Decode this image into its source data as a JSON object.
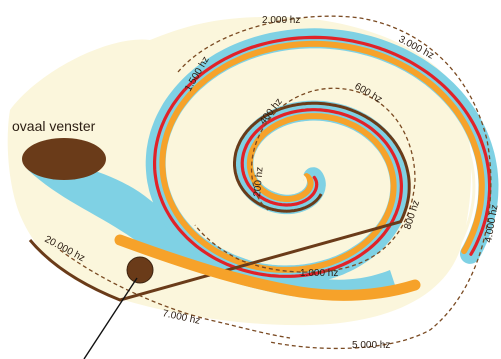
{
  "diagram": {
    "label_window": "ovaal venster",
    "frequencies": [
      "2.000 hz",
      "3.000 hz",
      "1.500 hz",
      "600 hz",
      "400 hz",
      "200 hz",
      "800 hz",
      "4.000 hz",
      "1.000 hz",
      "20.000 hz",
      "7.000 hz",
      "5.000 hz"
    ]
  },
  "colors": {
    "fluid": "#fbf6dc",
    "blue": "#7fd1e4",
    "orange": "#f6a22a",
    "red": "#e12228",
    "brown": "#6a3b19",
    "dash": "#7a4a22"
  }
}
